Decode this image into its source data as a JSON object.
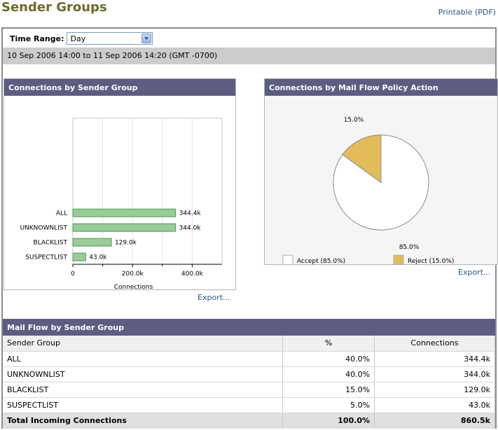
{
  "page": {
    "title": "Sender Groups",
    "printable_label": "Printable (PDF)"
  },
  "time_range": {
    "label": "Time Range:",
    "selected": "Day",
    "range_text": "10 Sep 2006 14:00 to 11 Sep 2006 14:20 (GMT -0700)"
  },
  "bar_panel": {
    "title": "Connections by Sender Group",
    "export_label": "Export..."
  },
  "pie_panel": {
    "title": "Connections by Mail Flow Policy Action",
    "export_label": "Export..."
  },
  "table": {
    "title": "Mail Flow by Sender Group",
    "columns": [
      "Sender Group",
      "%",
      "Connections"
    ],
    "rows": [
      {
        "group": "ALL",
        "pct": "40.0%",
        "connections": "344.4k"
      },
      {
        "group": "UNKNOWNLIST",
        "pct": "40.0%",
        "connections": "344.0k"
      },
      {
        "group": "BLACKLIST",
        "pct": "15.0%",
        "connections": "129.0k"
      },
      {
        "group": "SUSPECTLIST",
        "pct": "5.0%",
        "connections": "43.0k"
      }
    ],
    "total": {
      "label": "Total Incoming Connections",
      "pct": "100.0%",
      "connections": "860.5k"
    }
  },
  "chart_data": [
    {
      "type": "bar",
      "orientation": "horizontal",
      "categories": [
        "ALL",
        "UNKNOWNLIST",
        "BLACKLIST",
        "SUSPECTLIST"
      ],
      "values": [
        344.4,
        344.0,
        129.0,
        43.0
      ],
      "value_labels": [
        "344.4k",
        "344.0k",
        "129.0k",
        "43.0k"
      ],
      "xlabel": "Connections",
      "xlim": [
        0,
        500
      ],
      "x_ticks": [
        0,
        200,
        400
      ],
      "x_tick_labels": [
        "0",
        "200.0k",
        "400.0k"
      ],
      "grid": true,
      "bar_color": "#99cc99"
    },
    {
      "type": "pie",
      "labels": [
        "Accept",
        "Reject"
      ],
      "values": [
        85.0,
        15.0
      ],
      "slice_labels": [
        "85.0%",
        "15.0%"
      ],
      "legend_entries": [
        "Accept  (85.0%)",
        "Reject  (15.0%)"
      ],
      "colors": [
        "#ffffff",
        "#e2bb5a"
      ],
      "legend_position": "bottom"
    }
  ]
}
